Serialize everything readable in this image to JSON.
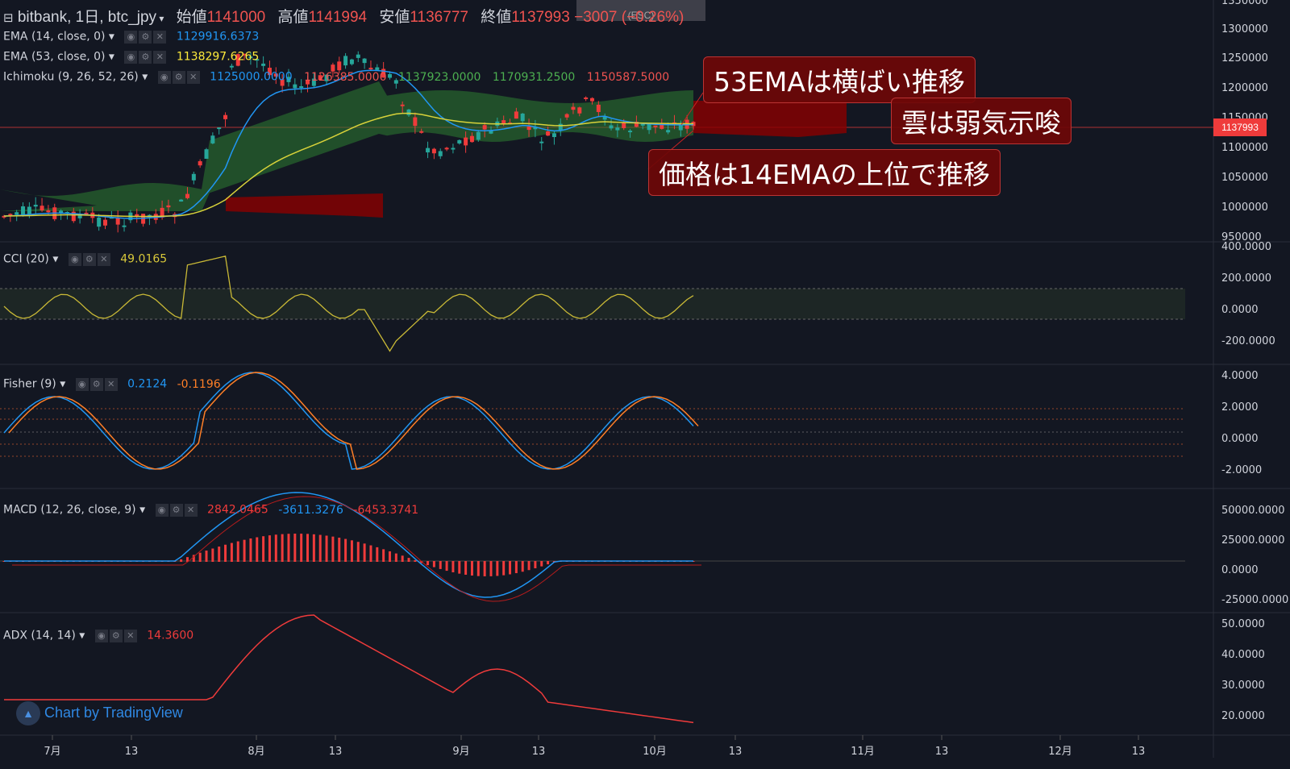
{
  "header": {
    "title": "bitbank, 1日, btc_jpy",
    "open_label": "始値",
    "open_value": "1141000",
    "high_label": "高値",
    "high_value": "1141994",
    "low_label": "安値",
    "low_value": "1136777",
    "close_label": "終値",
    "close_value": "1137993",
    "change": "−3007 (−0.26%)"
  },
  "esc_hint": "(ESC)",
  "indicators": {
    "ema14": {
      "label": "EMA (14, close, 0)",
      "value": "1129916.6373",
      "color": "#2196f3"
    },
    "ema53": {
      "label": "EMA (53, close, 0)",
      "value": "1138297.6265",
      "color": "#ffeb3b"
    },
    "ichimoku": {
      "label": "Ichimoku (9, 26, 52, 26)",
      "values": [
        "1125000.0000",
        "1126385.0000",
        "1137923.0000",
        "1170931.2500",
        "1150587.5000"
      ],
      "colors": [
        "#2196f3",
        "#ef5350",
        "#4caf50",
        "#4caf50",
        "#ef5350"
      ]
    },
    "cci": {
      "label": "CCI (20)",
      "value": "49.0165",
      "color": "#d8c83a"
    },
    "fisher": {
      "label": "Fisher (9)",
      "value1": "0.2124",
      "value2": "-0.1196",
      "colors": [
        "#2196f3",
        "#ff7f27"
      ]
    },
    "macd": {
      "label": "MACD (12, 26, close, 9)",
      "values": [
        "2842.0465",
        "-3611.3276",
        "-6453.3741"
      ],
      "colors": [
        "#ef3b3b",
        "#2196f3",
        "#ef3b3b"
      ]
    },
    "adx": {
      "label": "ADX (14, 14)",
      "value": "14.3600",
      "color": "#ef3b3b"
    }
  },
  "annotations": [
    {
      "text": "53EMAは横ばい推移"
    },
    {
      "text": "雲は弱気示唆"
    },
    {
      "text": "価格は14EMAの上位で推移"
    }
  ],
  "price_axis": [
    "1350000",
    "1300000",
    "1250000",
    "1200000",
    "1150000",
    "1100000",
    "1050000",
    "1000000",
    "950000"
  ],
  "current_price": "1137993",
  "cci_axis": [
    "400.0000",
    "200.0000",
    "0.0000",
    "-200.0000"
  ],
  "fisher_axis": [
    "4.0000",
    "2.0000",
    "0.0000",
    "-2.0000"
  ],
  "macd_axis": [
    "50000.0000",
    "25000.0000",
    "0.0000",
    "-25000.0000"
  ],
  "adx_axis": [
    "50.0000",
    "40.0000",
    "30.0000",
    "20.0000"
  ],
  "time_axis": [
    "7月",
    "13",
    "8月",
    "13",
    "9月",
    "13",
    "10月",
    "13",
    "11月",
    "13",
    "12月",
    "13"
  ],
  "watermark": "Chart by TradingView",
  "colors": {
    "bg": "#131722",
    "up": "#26a69a",
    "down": "#ef3b3b",
    "cloud_bull": "#2e7d32",
    "cloud_bear": "#8b0000"
  }
}
